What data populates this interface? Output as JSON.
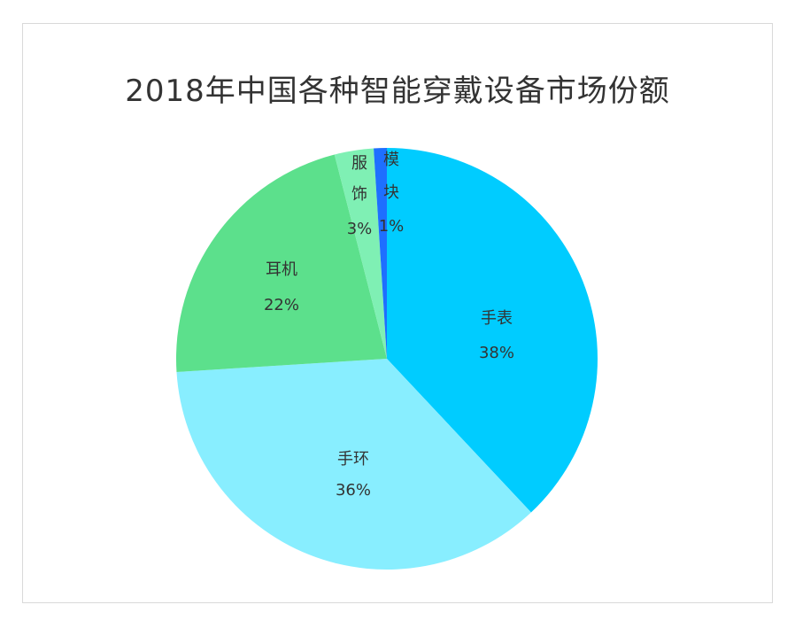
{
  "chart_data": {
    "type": "pie",
    "title": "2018年中国各种智能穿戴设备市场份额",
    "slices": [
      {
        "name": "手表",
        "value": 38,
        "label": "38%",
        "color": "#00ccff"
      },
      {
        "name": "手环",
        "value": 36,
        "label": "36%",
        "color": "#88eeff"
      },
      {
        "name": "耳机",
        "value": 22,
        "label": "22%",
        "color": "#5ce08c"
      },
      {
        "name": "服饰",
        "value": 3,
        "label": "3%",
        "color": "#7ff0b4"
      },
      {
        "name": "模块",
        "value": 1,
        "label": "1%",
        "color": "#1e6fff"
      }
    ],
    "start_angle_deg": 0,
    "direction": "clockwise",
    "legend": "none"
  }
}
